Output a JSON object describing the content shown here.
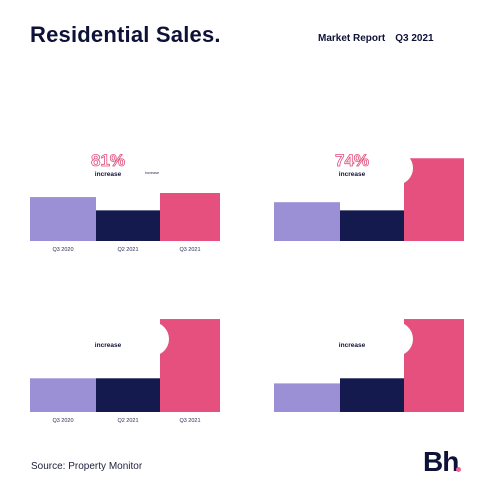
{
  "header": {
    "title": "Residential Sales.",
    "report_label": "Market Report",
    "period": "Q3 2021"
  },
  "footer": {
    "source": "Source: Property Monitor",
    "logo": "Bh"
  },
  "colors": {
    "q3_2020": "#9b8fd6",
    "q2_2021": "#141a4d",
    "q3_2021": "#e5507f",
    "accent": "#e0507d",
    "dark": "#0f1238"
  },
  "chart_data": [
    {
      "type": "bar",
      "title": "",
      "categories": [
        "Q3 2020",
        "Q2 2021",
        "Q3 2021"
      ],
      "values": [
        4.3,
        3.0,
        4.7
      ],
      "bar_labels": [
        "",
        "",
        ""
      ],
      "highlight_pct": "81%",
      "highlight_word": "increase",
      "highlight_note": "",
      "small_pct": "",
      "small_word": "increase"
    },
    {
      "type": "bar",
      "title": "",
      "categories": [
        "",
        "",
        ""
      ],
      "values": [
        3.8,
        3.0,
        8.1
      ],
      "bar_labels": [
        "",
        "",
        ""
      ],
      "highlight_pct": "74%",
      "highlight_word": "increase",
      "highlight_note": "",
      "small_pct": "",
      "small_word": ""
    },
    {
      "type": "bar",
      "title": "",
      "categories": [
        "Q3 2020",
        "Q2 2021",
        "Q3 2021"
      ],
      "values": [
        3.3,
        3.3,
        9.1
      ],
      "bar_labels": [
        "",
        "",
        ""
      ],
      "highlight_pct": "",
      "highlight_word": "increase",
      "highlight_note": "",
      "small_pct": "",
      "small_word": ""
    },
    {
      "type": "bar",
      "title": "",
      "categories": [
        "",
        "",
        ""
      ],
      "values": [
        2.8,
        3.3,
        9.1
      ],
      "bar_labels": [
        "",
        "",
        ""
      ],
      "highlight_pct": "",
      "highlight_word": "increase",
      "highlight_note": "",
      "small_pct": "",
      "small_word": ""
    }
  ]
}
